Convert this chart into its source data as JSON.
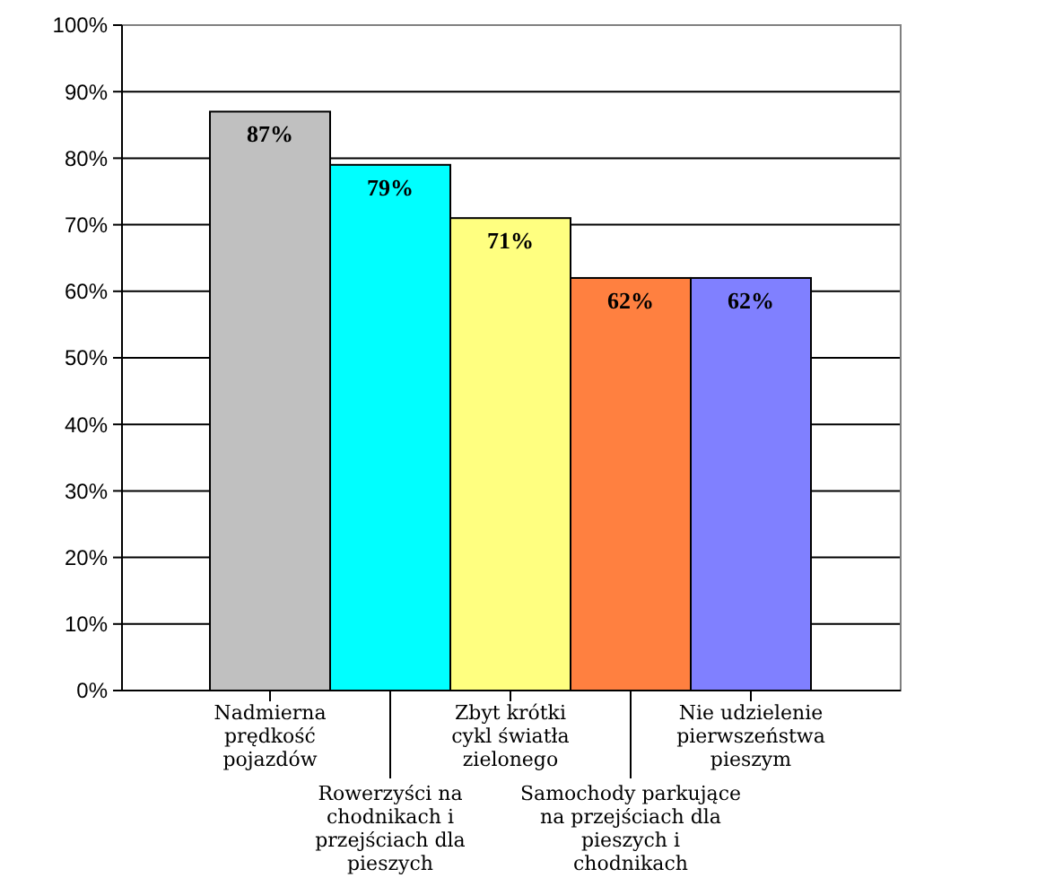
{
  "chart_data": {
    "type": "bar",
    "categories": [
      "Nadmierna prędkość pojazdów",
      "Rowerzyści na chodnikach i przejściach dla pieszych",
      "Zbyt krótki cykl światła zielonego",
      "Samochody parkujące na przejściach dla pieszych i chodnikach",
      "Nie udzielenie pierwszeństwa pieszym"
    ],
    "values": [
      87,
      79,
      71,
      62,
      62
    ],
    "colors": [
      "#c0c0c0",
      "#00ffff",
      "#ffff80",
      "#ff8040",
      "#8080ff"
    ],
    "value_labels": [
      "87%",
      "79%",
      "71%",
      "62%",
      "62%"
    ],
    "ylim": [
      0,
      100
    ],
    "yticks": [
      {
        "value": 0,
        "label": "0%"
      },
      {
        "value": 10,
        "label": "10%"
      },
      {
        "value": 20,
        "label": "20%"
      },
      {
        "value": 30,
        "label": "30%"
      },
      {
        "value": 40,
        "label": "40%"
      },
      {
        "value": 50,
        "label": "50%"
      },
      {
        "value": 60,
        "label": "60%"
      },
      {
        "value": 70,
        "label": "70%"
      },
      {
        "value": 80,
        "label": "80%"
      },
      {
        "value": 90,
        "label": "90%"
      },
      {
        "value": 100,
        "label": "100%"
      }
    ],
    "grid": "y",
    "legend": false
  }
}
